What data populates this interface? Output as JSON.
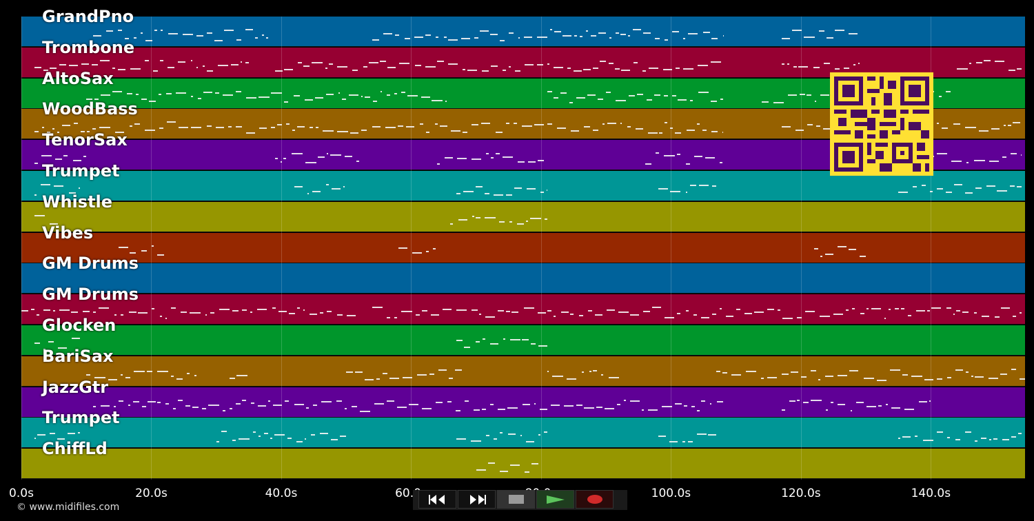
{
  "app": {
    "copyright": "© www.midifiles.com"
  },
  "tracks": [
    {
      "label": "GrandPno",
      "color": "#00629b"
    },
    {
      "label": "Trombone",
      "color": "#960032"
    },
    {
      "label": "AltoSax",
      "color": "#00962b"
    },
    {
      "label": "WoodBass",
      "color": "#966100"
    },
    {
      "label": "TenorSax",
      "color": "#5f0096"
    },
    {
      "label": "Trumpet",
      "color": "#009696"
    },
    {
      "label": "Whistle",
      "color": "#969600"
    },
    {
      "label": "Vibes",
      "color": "#962800"
    },
    {
      "label": "GM Drums",
      "color": "#00629b"
    },
    {
      "label": "GM Drums",
      "color": "#960032"
    },
    {
      "label": "Glocken",
      "color": "#00962b"
    },
    {
      "label": "BariSax",
      "color": "#966100"
    },
    {
      "label": "JazzGtr",
      "color": "#5f0096"
    },
    {
      "label": "Trumpet",
      "color": "#009696"
    },
    {
      "label": "ChiffLd",
      "color": "#969600"
    }
  ],
  "timeline": {
    "max_seconds": 154.5,
    "ticks": [
      {
        "value": 0,
        "label": "0.0s"
      },
      {
        "value": 20,
        "label": "20.0s"
      },
      {
        "value": 40,
        "label": "40.0s"
      },
      {
        "value": 60,
        "label": "60.0s"
      },
      {
        "value": 80,
        "label": "80.0s"
      },
      {
        "value": 100,
        "label": "100.0s"
      },
      {
        "value": 120,
        "label": "120.0s"
      },
      {
        "value": 140,
        "label": "140.0s"
      }
    ]
  },
  "transport": {
    "rewind_icon": "rewind-icon",
    "fast_forward_icon": "fast-forward-icon",
    "stop_icon": "stop-icon",
    "play_icon": "play-icon",
    "record_icon": "record-icon",
    "colors": {
      "stop": "#9a9a9a",
      "play": "#5cc45c",
      "record": "#d02a2a"
    }
  },
  "qr_icon": "qr-code-icon",
  "note_segments": [
    [
      [
        11,
        38
      ],
      [
        54,
        108
      ],
      [
        117,
        129
      ]
    ],
    [
      [
        2,
        35
      ],
      [
        39,
        108
      ],
      [
        117,
        129
      ],
      [
        144,
        154
      ]
    ],
    [
      [
        10,
        66
      ],
      [
        81,
        108
      ],
      [
        114,
        130
      ],
      [
        135,
        143
      ]
    ],
    [
      [
        2,
        108
      ],
      [
        117,
        130
      ],
      [
        135,
        154
      ]
    ],
    [
      [
        2,
        10
      ],
      [
        39,
        52
      ],
      [
        64,
        81
      ],
      [
        96,
        108
      ],
      [
        137,
        154
      ]
    ],
    [
      [
        2,
        9
      ],
      [
        42,
        50
      ],
      [
        67,
        81
      ],
      [
        98,
        107
      ],
      [
        135,
        154
      ]
    ],
    [
      [
        2,
        6
      ],
      [
        66,
        81
      ]
    ],
    [
      [
        15,
        22
      ],
      [
        58,
        64
      ],
      [
        122,
        130
      ]
    ],
    [],
    [
      [
        0,
        52
      ],
      [
        54,
        154
      ]
    ],
    [
      [
        2,
        9
      ],
      [
        67,
        81
      ]
    ],
    [
      [
        10,
        27
      ],
      [
        32,
        35
      ],
      [
        50,
        68
      ],
      [
        81,
        92
      ],
      [
        107,
        155
      ]
    ],
    [
      [
        11,
        108
      ],
      [
        117,
        140
      ]
    ],
    [
      [
        2,
        9
      ],
      [
        30,
        50
      ],
      [
        67,
        81
      ],
      [
        98,
        107
      ],
      [
        135,
        154
      ]
    ],
    [
      [
        70,
        80
      ]
    ]
  ]
}
